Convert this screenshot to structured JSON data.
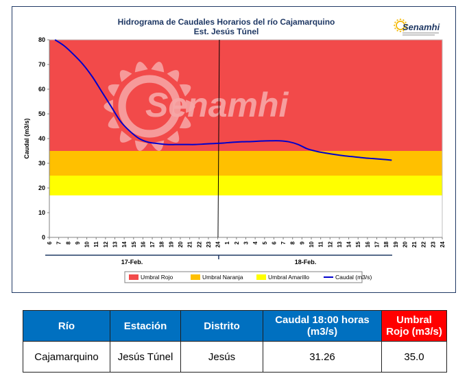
{
  "chart_data": {
    "type": "line",
    "title": "Hidrograma de Caudales Horarios del río Cajamarquino",
    "subtitle": "Est. Jesús Túnel",
    "ylabel": "Caudal  (m3/s)",
    "ylim": [
      0,
      80
    ],
    "yticks": [
      0,
      10,
      20,
      30,
      40,
      50,
      60,
      70,
      80
    ],
    "xtick_labels": [
      "6",
      "7",
      "8",
      "9",
      "10",
      "11",
      "12",
      "13",
      "14",
      "15",
      "16",
      "17",
      "18",
      "19",
      "20",
      "21",
      "22",
      "23",
      "24",
      "1",
      "2",
      "3",
      "4",
      "5",
      "6",
      "7",
      "8",
      "9",
      "10",
      "11",
      "12",
      "13",
      "14",
      "15",
      "16",
      "17",
      "18",
      "19",
      "20",
      "21",
      "22",
      "23",
      "24"
    ],
    "day_labels": [
      "17-Feb.",
      "18-Feb."
    ],
    "thresholds": {
      "amarillo": [
        17,
        25
      ],
      "naranja": [
        25,
        35
      ],
      "rojo": [
        35,
        80
      ]
    },
    "colors": {
      "rojo": "#f24a4a",
      "naranja": "#ffc000",
      "amarillo": "#ffff00",
      "caudal": "#0000cc",
      "watermark": "#f7a8a8"
    },
    "legend": [
      {
        "label": "Umbral Rojo",
        "color": "#f24a4a"
      },
      {
        "label": "Umbral Naranja",
        "color": "#ffc000"
      },
      {
        "label": "Umbral Amarillo",
        "color": "#ffff00"
      },
      {
        "label": "Caudal (m3/s)",
        "color": "#0000cc"
      }
    ],
    "series": [
      {
        "name": "Caudal (m3/s)",
        "values": [
          80.5,
          77.5,
          74,
          70,
          65,
          59,
          53,
          47,
          43,
          40,
          38.5,
          38,
          37.6,
          37.6,
          37.6,
          37.6,
          37.8,
          38,
          38.2,
          38.5,
          38.7,
          38.8,
          39,
          39.1,
          39.1,
          38.7,
          37.6,
          35.8,
          34.8,
          34.1,
          33.5,
          33,
          32.6,
          32.2,
          31.9,
          31.6,
          31.26
        ]
      }
    ],
    "watermark": "Senamhi",
    "logo": "Senamhi"
  },
  "table": {
    "headers": [
      "Río",
      "Estación",
      "Distrito",
      "Caudal  18:00 horas (m3/s)",
      "Umbral Rojo (m3/s)"
    ],
    "row": [
      "Cajamarquino",
      "Jesús Túnel",
      "Jesús",
      "31.26",
      "35.0"
    ]
  }
}
